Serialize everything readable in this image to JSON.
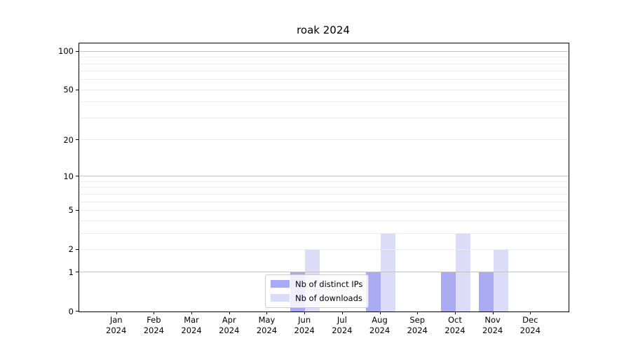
{
  "chart_data": {
    "type": "bar",
    "title": "roak 2024",
    "categories": [
      "Jan 2024",
      "Feb 2024",
      "Mar 2024",
      "Apr 2024",
      "May 2024",
      "Jun 2024",
      "Jul 2024",
      "Aug 2024",
      "Sep 2024",
      "Oct 2024",
      "Nov 2024",
      "Dec 2024"
    ],
    "series": [
      {
        "name": "Nb of distinct IPs",
        "color": "#aaaaf2",
        "values": [
          0,
          0,
          0,
          0,
          0,
          1,
          0,
          1,
          0,
          1,
          1,
          0
        ]
      },
      {
        "name": "Nb of downloads",
        "color": "#dcdcf8",
        "values": [
          0,
          0,
          0,
          0,
          0,
          2,
          0,
          3,
          0,
          3,
          2,
          0
        ]
      }
    ],
    "xlabel": "",
    "ylabel": "",
    "yscale": "log1p",
    "ylim": [
      0,
      116
    ],
    "y_tick_labels": [
      0,
      1,
      2,
      5,
      10,
      20,
      50,
      100
    ],
    "y_major_gridlines": [
      1,
      10,
      100
    ],
    "y_minor_gridlines": [
      2,
      3,
      4,
      5,
      6,
      7,
      8,
      9,
      20,
      30,
      40,
      50,
      60,
      70,
      80,
      90
    ],
    "grid": true,
    "legend_position": "lower center"
  }
}
